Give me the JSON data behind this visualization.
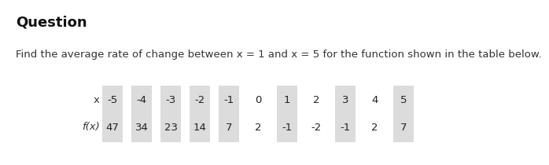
{
  "title": "Question",
  "subtitle": "Find the average rate of change between x = 1 and x = 5 for the function shown in the table below.",
  "x_label": "x",
  "fx_label": "f(x)",
  "x_values": [
    "-5",
    "-4",
    "-3",
    "-2",
    "-1",
    "0",
    "1",
    "2",
    "3",
    "4",
    "5"
  ],
  "fx_values": [
    "47",
    "34",
    "23",
    "14",
    "7",
    "2",
    "-1",
    "-2",
    "-1",
    "2",
    "7"
  ],
  "shaded_indices": [
    0,
    1,
    2,
    3,
    4,
    6,
    8,
    10
  ],
  "shaded_color": "#dcdcdc",
  "bg_color": "#ffffff",
  "title_fontsize": 13,
  "subtitle_fontsize": 9.5,
  "table_fontsize": 9.5,
  "label_fontsize": 9.5,
  "title_color": "#111111",
  "text_color": "#333333",
  "table_text_color": "#222222"
}
